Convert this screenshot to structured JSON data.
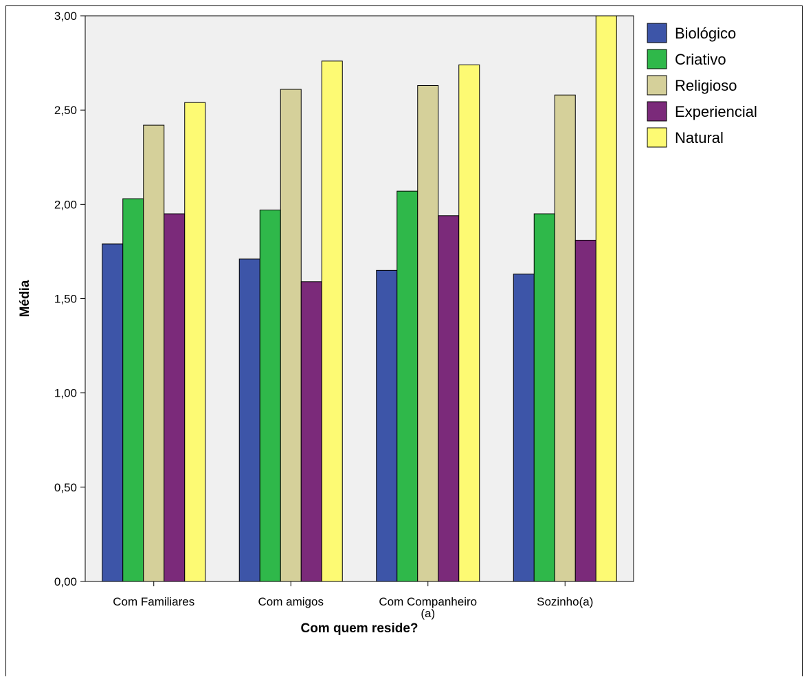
{
  "chart_data": {
    "type": "bar",
    "xlabel": "Com quem reside?",
    "ylabel": "Média",
    "ylim": [
      0,
      3.0
    ],
    "yticks": [
      "0,00",
      "0,50",
      "1,00",
      "1,50",
      "2,00",
      "2,50",
      "3,00"
    ],
    "ytick_values": [
      0,
      0.5,
      1.0,
      1.5,
      2.0,
      2.5,
      3.0
    ],
    "categories": [
      [
        "Com Familiares"
      ],
      [
        "Com amigos"
      ],
      [
        "Com Companheiro",
        "(a)"
      ],
      [
        "Sozinho(a)"
      ]
    ],
    "series": [
      {
        "name": "Biológico",
        "color": "#3d55a8",
        "values": [
          1.79,
          1.71,
          1.65,
          1.63
        ]
      },
      {
        "name": "Criativo",
        "color": "#2fb84a",
        "values": [
          2.03,
          1.97,
          2.07,
          1.95
        ]
      },
      {
        "name": "Religioso",
        "color": "#d5d09a",
        "values": [
          2.42,
          2.61,
          2.63,
          2.58
        ]
      },
      {
        "name": "Experiencial",
        "color": "#7b2a7a",
        "values": [
          1.95,
          1.59,
          1.94,
          1.81
        ]
      },
      {
        "name": "Natural",
        "color": "#fdfa73",
        "values": [
          2.54,
          2.76,
          2.74,
          3.0
        ]
      }
    ],
    "plot_background": "#f0f0f0",
    "grid": false,
    "legend_position": "top-right"
  }
}
